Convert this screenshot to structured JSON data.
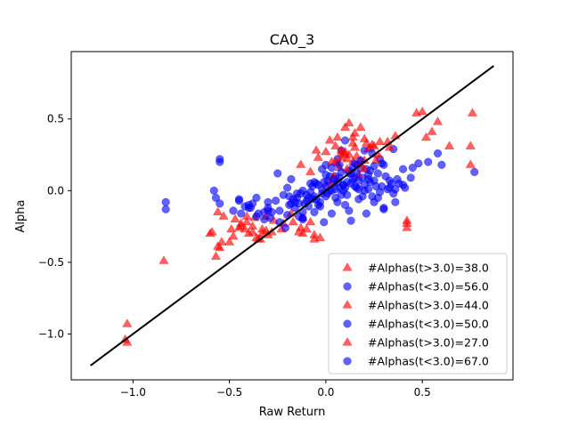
{
  "chart_data": {
    "type": "scatter",
    "title": "CA0_3",
    "xlabel": "Raw Return",
    "ylabel": "Alpha",
    "xlim": [
      -1.32,
      0.97
    ],
    "ylim": [
      -1.32,
      0.97
    ],
    "xticks": [
      -1.0,
      -0.5,
      0.0,
      0.5
    ],
    "xtick_labels": [
      "−1.0",
      "−0.5",
      "0.0",
      "0.5"
    ],
    "yticks": [
      -1.0,
      -0.5,
      0.0,
      0.5
    ],
    "ytick_labels": [
      "−1.0",
      "−0.5",
      "0.0",
      "0.5"
    ],
    "grid": false,
    "legend_position": "lower-right",
    "reference_line": {
      "color": "#000000",
      "points": [
        [
          -1.22,
          -1.22
        ],
        [
          0.87,
          0.87
        ]
      ]
    },
    "colors": {
      "red": "#ff0000",
      "blue": "#0000ff"
    },
    "series": [
      {
        "name": "#Alphas(t>3.0)=38.0",
        "marker": "triangle",
        "color": "#ff0000",
        "x": [
          -0.38,
          -0.33,
          -0.31,
          -0.27,
          -0.41,
          -0.36,
          -0.47,
          -0.53,
          -0.55,
          -0.59,
          -0.5,
          -0.45,
          -0.37,
          -0.3,
          -0.23,
          -0.12,
          -0.06,
          0.02,
          0.06,
          0.1,
          0.12,
          0.15,
          0.18,
          0.22,
          0.25,
          0.1,
          0.2,
          0.47,
          0.52,
          0.58,
          0.76,
          0.75,
          0.42,
          0.07,
          -0.05,
          -0.13,
          -1.03,
          -0.84
        ],
        "y": [
          -0.25,
          -0.3,
          -0.28,
          -0.21,
          -0.22,
          -0.33,
          -0.2,
          -0.18,
          -0.4,
          -0.29,
          -0.36,
          -0.26,
          -0.19,
          -0.31,
          -0.27,
          -0.19,
          -0.31,
          0.35,
          0.37,
          0.44,
          0.47,
          0.4,
          0.44,
          0.29,
          0.31,
          0.25,
          0.21,
          0.54,
          0.37,
          0.48,
          0.54,
          0.31,
          -0.26,
          0.16,
          0.28,
          -0.26,
          -1.06,
          -0.49
        ]
      },
      {
        "name": "#Alphas(t<3.0)=56.0",
        "marker": "circle",
        "color": "#0000ff",
        "x": [
          -0.55,
          -0.55,
          -0.58,
          -0.57,
          -0.45,
          -0.39,
          -0.32,
          -0.3,
          -0.25,
          -0.2,
          -0.18,
          -0.15,
          -0.12,
          -0.1,
          -0.08,
          -0.05,
          -0.02,
          0.0,
          0.02,
          0.04,
          0.06,
          0.08,
          0.1,
          0.12,
          0.14,
          0.16,
          0.18,
          0.2,
          0.22,
          0.24,
          0.28,
          0.3,
          0.35,
          0.4,
          0.45,
          0.48,
          0.53,
          0.58,
          0.6,
          0.77,
          -0.83,
          -0.83,
          -0.12,
          -0.03,
          0.05,
          0.1,
          0.15,
          0.2,
          0.25,
          0.3,
          0.36,
          0.4,
          -0.01,
          0.03,
          0.08,
          0.13
        ],
        "y": [
          0.22,
          0.2,
          0.0,
          -0.05,
          -0.06,
          -0.12,
          -0.15,
          -0.08,
          0.12,
          0.02,
          0.08,
          -0.05,
          -0.15,
          -0.07,
          -0.01,
          0.05,
          0.15,
          0.18,
          0.1,
          0.05,
          0.22,
          0.28,
          0.35,
          0.12,
          0.08,
          0.02,
          0.16,
          0.28,
          0.01,
          -0.04,
          0.22,
          0.18,
          0.29,
          0.15,
          0.16,
          0.19,
          0.2,
          0.26,
          0.18,
          0.13,
          -0.08,
          -0.13,
          -0.19,
          -0.11,
          0.01,
          -0.1,
          0.09,
          0.04,
          -0.08,
          -0.12,
          0.01,
          0.04,
          -0.22,
          -0.16,
          -0.03,
          -0.21
        ]
      },
      {
        "name": "#Alphas(t>3.0)=44.0",
        "marker": "triangle",
        "color": "#ff0000",
        "x": [
          -0.42,
          -0.4,
          -0.35,
          -0.28,
          -0.22,
          -0.18,
          -0.1,
          -0.03,
          0.05,
          0.08,
          0.12,
          0.15,
          0.18,
          0.24,
          0.28,
          0.32,
          0.36,
          0.5,
          0.55,
          0.64,
          -0.06,
          -1.04,
          -1.03,
          -0.14,
          -0.57,
          -0.56,
          -0.54,
          -0.49,
          -0.44,
          -0.41,
          0.02,
          0.06,
          0.1,
          0.14,
          0.2,
          0.27,
          0.33,
          -0.34,
          -0.31,
          0.03,
          0.08,
          0.42,
          -0.08,
          0.16
        ],
        "y": [
          -0.27,
          -0.3,
          -0.34,
          -0.29,
          -0.23,
          -0.16,
          -0.27,
          -0.33,
          0.2,
          0.23,
          0.25,
          0.3,
          0.21,
          0.32,
          0.34,
          0.34,
          0.38,
          0.55,
          0.41,
          0.31,
          -0.34,
          -1.04,
          -0.93,
          -0.29,
          -0.46,
          -0.39,
          -0.36,
          -0.27,
          -0.23,
          -0.18,
          0.05,
          0.19,
          0.27,
          0.37,
          0.36,
          0.25,
          0.3,
          -0.34,
          -0.18,
          0.2,
          0.26,
          -0.21,
          -0.22,
          0.24
        ]
      },
      {
        "name": "#Alphas(t<3.0)=50.0",
        "marker": "circle",
        "color": "#0000ff",
        "x": [
          -0.48,
          -0.44,
          -0.4,
          -0.36,
          -0.32,
          -0.28,
          -0.24,
          -0.2,
          -0.16,
          -0.14,
          -0.11,
          -0.09,
          -0.07,
          -0.06,
          -0.04,
          -0.02,
          0.0,
          0.01,
          0.03,
          0.05,
          0.07,
          0.09,
          0.11,
          0.13,
          0.15,
          0.17,
          0.19,
          0.21,
          0.23,
          0.26,
          0.29,
          0.32,
          0.34,
          0.37,
          -0.55,
          -0.38,
          -0.3,
          -0.21,
          -0.12,
          0.0,
          0.06,
          0.09,
          0.12,
          0.16,
          0.22,
          0.25,
          0.28,
          -0.19,
          -0.16,
          -0.06
        ],
        "y": [
          -0.14,
          -0.16,
          -0.12,
          -0.18,
          -0.2,
          -0.15,
          -0.22,
          -0.17,
          -0.12,
          -0.18,
          -0.09,
          -0.05,
          -0.06,
          -0.15,
          -0.1,
          -0.02,
          0.03,
          0.07,
          0.0,
          0.1,
          0.02,
          0.04,
          0.06,
          0.12,
          0.03,
          -0.06,
          0.09,
          0.15,
          0.06,
          0.03,
          0.19,
          0.01,
          0.05,
          0.08,
          -0.09,
          -0.09,
          -0.14,
          -0.26,
          -0.2,
          -0.04,
          0.06,
          0.0,
          0.14,
          0.18,
          0.11,
          0.07,
          -0.01,
          -0.04,
          -0.08,
          0.06
        ]
      },
      {
        "name": "#Alphas(t>3.0)=27.0",
        "marker": "triangle",
        "color": "#ff0000",
        "x": [
          -0.13,
          -0.08,
          -0.04,
          0.0,
          0.05,
          0.08,
          0.11,
          0.14,
          0.17,
          0.2,
          0.23,
          0.26,
          0.04,
          0.11,
          0.18,
          0.21,
          -0.12,
          -0.17,
          -0.33,
          -0.38,
          -0.44,
          -0.48,
          -0.56,
          -0.6,
          0.42,
          0.75,
          0.14
        ],
        "y": [
          0.18,
          0.13,
          0.23,
          0.27,
          0.31,
          0.28,
          0.22,
          0.2,
          0.11,
          0.15,
          0.3,
          0.21,
          0.1,
          0.15,
          0.18,
          0.33,
          -0.3,
          -0.22,
          -0.27,
          -0.29,
          -0.25,
          -0.32,
          -0.15,
          -0.3,
          -0.23,
          0.18,
          0.33
        ]
      },
      {
        "name": "#Alphas(t<3.0)=67.0",
        "marker": "circle",
        "color": "#0000ff",
        "x": [
          -0.45,
          -0.4,
          -0.35,
          -0.3,
          -0.26,
          -0.22,
          -0.19,
          -0.17,
          -0.14,
          -0.12,
          -0.1,
          -0.08,
          -0.06,
          -0.04,
          -0.03,
          -0.01,
          0.01,
          0.02,
          0.04,
          0.05,
          0.07,
          0.08,
          0.1,
          0.11,
          0.13,
          0.14,
          0.16,
          0.17,
          0.19,
          0.2,
          0.22,
          0.23,
          0.25,
          0.27,
          0.29,
          0.31,
          0.33,
          0.35,
          0.38,
          0.41,
          0.44,
          -0.42,
          -0.36,
          -0.29,
          -0.24,
          -0.18,
          -0.13,
          -0.09,
          -0.05,
          -0.02,
          0.0,
          0.03,
          0.06,
          0.09,
          0.12,
          0.15,
          0.18,
          0.21,
          0.24,
          0.27,
          0.3,
          0.33,
          0.36,
          -0.15,
          -0.07,
          0.07,
          0.17
        ],
        "y": [
          -0.07,
          -0.1,
          -0.16,
          -0.12,
          -0.07,
          -0.03,
          -0.1,
          -0.06,
          -0.09,
          0.0,
          -0.03,
          0.05,
          -0.04,
          0.04,
          -0.08,
          0.06,
          -0.02,
          0.0,
          0.08,
          -0.05,
          0.09,
          0.13,
          0.02,
          -0.03,
          0.05,
          0.16,
          0.12,
          0.07,
          -0.04,
          0.0,
          0.08,
          0.14,
          0.17,
          -0.05,
          0.03,
          0.1,
          0.07,
          -0.02,
          0.05,
          0.02,
          0.09,
          -0.11,
          -0.05,
          -0.19,
          -0.14,
          -0.09,
          -0.02,
          -0.11,
          -0.06,
          0.01,
          0.11,
          0.16,
          -0.08,
          0.04,
          -0.14,
          0.19,
          0.21,
          -0.16,
          0.26,
          0.12,
          -0.13,
          0.02,
          -0.08,
          -0.02,
          0.03,
          0.18,
          0.01
        ]
      }
    ]
  }
}
